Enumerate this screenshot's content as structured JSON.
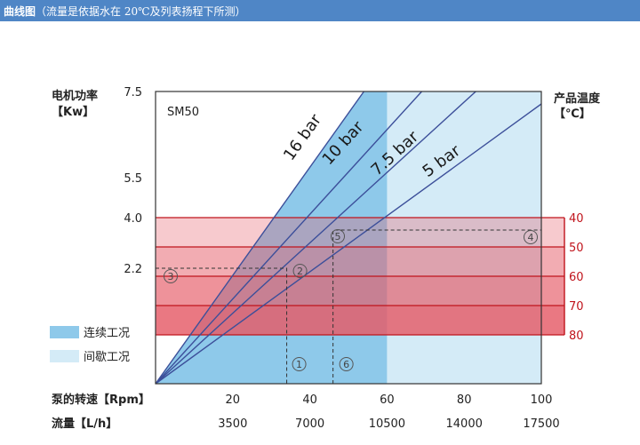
{
  "header": {
    "title": "曲线图",
    "note": "（流量是依据水在 20℃及列表扬程下所测）"
  },
  "colors": {
    "header_bg": "#4f86c6",
    "continuous": "#8ec9ea",
    "intermittent": "#d4ebf7",
    "pressure_line": "#3c4f9a",
    "temp_band": "#e55a66",
    "temp_axis": "#c0141c"
  },
  "chart_data": {
    "type": "line",
    "model_label": "SM50",
    "left_axis": {
      "title_line1": "电机功率",
      "title_line2": "【Kw】",
      "ticks": [
        {
          "label": "7.5",
          "value": 7.5
        },
        {
          "label": "5.5",
          "value": 5.5
        },
        {
          "label": "4.0",
          "value": 4.0
        },
        {
          "label": "2.2",
          "value": 2.2
        }
      ]
    },
    "right_axis": {
      "title_line1": "产品温度",
      "title_line2": "【℃】",
      "ticks": [
        {
          "label": "40",
          "value": 40
        },
        {
          "label": "50",
          "value": 50
        },
        {
          "label": "60",
          "value": 60
        },
        {
          "label": "70",
          "value": 70
        },
        {
          "label": "80",
          "value": 80
        }
      ]
    },
    "x_axis": {
      "title": "泵的转速【Rpm】",
      "ticks": [
        {
          "label": "20",
          "value": 20
        },
        {
          "label": "40",
          "value": 40
        },
        {
          "label": "60",
          "value": 60
        },
        {
          "label": "80",
          "value": 80
        },
        {
          "label": "100",
          "value": 100
        }
      ],
      "xlim": [
        0,
        100
      ]
    },
    "flow_axis": {
      "title": "流量【L/h】",
      "ticks": [
        {
          "label": "3500",
          "value": 20
        },
        {
          "label": "7000",
          "value": 40
        },
        {
          "label": "10500",
          "value": 60
        },
        {
          "label": "14000",
          "value": 80
        },
        {
          "label": "17500",
          "value": 100
        }
      ]
    },
    "pressure_lines": [
      {
        "label": "16 bar",
        "end_x": 54
      },
      {
        "label": "10 bar",
        "end_x": 69
      },
      {
        "label": "7.5 bar",
        "end_x": 83
      },
      {
        "label": "5 bar",
        "end_x": 100
      }
    ],
    "continuous_region_max_rpm": 60,
    "temp_bands": [
      {
        "from": 40,
        "to": 50,
        "shade": 0.32
      },
      {
        "from": 50,
        "to": 60,
        "shade": 0.5
      },
      {
        "from": 60,
        "to": 70,
        "shade": 0.66
      },
      {
        "from": 70,
        "to": 80,
        "shade": 0.82
      }
    ],
    "markers": [
      {
        "label": "①",
        "x": 34,
        "power": 0.35,
        "place": "bottom"
      },
      {
        "label": "②",
        "x": 34,
        "power": 2.2,
        "place": "point"
      },
      {
        "label": "③",
        "x": 4,
        "power": 2.2,
        "place": "left"
      },
      {
        "label": "④",
        "x": 95,
        "power": 4.0,
        "place": "right"
      },
      {
        "label": "⑤",
        "x": 46,
        "power": 4.0,
        "place": "point"
      },
      {
        "label": "⑥",
        "x": 46,
        "power": 0.35,
        "place": "bottom"
      }
    ],
    "legend": [
      {
        "label": "连续工况",
        "color": "#8ec9ea"
      },
      {
        "label": "间歇工况",
        "color": "#d4ebf7"
      }
    ]
  }
}
